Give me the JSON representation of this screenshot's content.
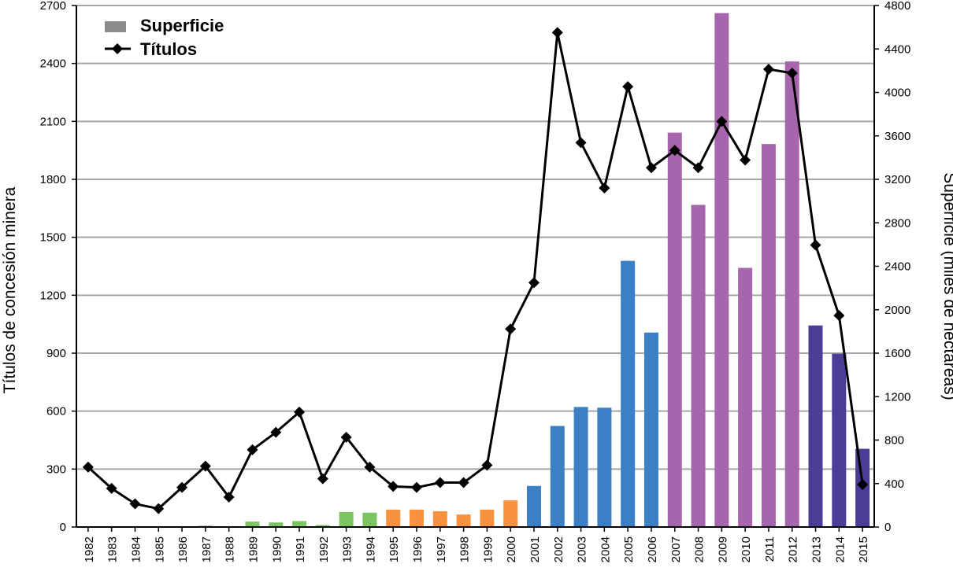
{
  "chart_data": {
    "type": "bar+line",
    "title": "",
    "categories": [
      "1982",
      "1983",
      "1984",
      "1985",
      "1986",
      "1987",
      "1988",
      "1989",
      "1990",
      "1991",
      "1992",
      "1993",
      "1994",
      "1995",
      "1996",
      "1997",
      "1998",
      "1999",
      "2000",
      "2001",
      "2002",
      "2003",
      "2004",
      "2005",
      "2006",
      "2007",
      "2008",
      "2009",
      "2010",
      "2011",
      "2012",
      "2013",
      "2014",
      "2015"
    ],
    "series": [
      {
        "name": "Superficie",
        "kind": "bar",
        "axis": "right",
        "values": [
          2,
          2,
          2,
          2,
          2,
          12,
          2,
          50,
          42,
          55,
          18,
          138,
          132,
          160,
          160,
          145,
          115,
          160,
          245,
          378,
          930,
          1105,
          1098,
          2450,
          1790,
          3630,
          2965,
          4730,
          2385,
          3525,
          4285,
          1855,
          1595,
          720
        ],
        "colors": [
          "#9a9a9a",
          "#9a9a9a",
          "#9a9a9a",
          "#9a9a9a",
          "#9a9a9a",
          "#9a9a9a",
          "#9a9a9a",
          "#7dc462",
          "#7dc462",
          "#7dc462",
          "#7dc462",
          "#7dc462",
          "#7dc462",
          "#f8923f",
          "#f8923f",
          "#f8923f",
          "#f8923f",
          "#f8923f",
          "#f8923f",
          "#3b80c4",
          "#3b80c4",
          "#3b80c4",
          "#3b80c4",
          "#3b80c4",
          "#3b80c4",
          "#a765ad",
          "#a765ad",
          "#a765ad",
          "#a765ad",
          "#a765ad",
          "#a765ad",
          "#4b3c97",
          "#4b3c97",
          "#4b3c97"
        ]
      },
      {
        "name": "Títulos",
        "kind": "line",
        "axis": "left",
        "color": "#000000",
        "values": [
          310,
          200,
          120,
          95,
          205,
          315,
          155,
          400,
          490,
          595,
          250,
          465,
          310,
          210,
          205,
          230,
          230,
          320,
          1025,
          1265,
          2560,
          1990,
          1755,
          2280,
          1860,
          1950,
          1860,
          2100,
          1900,
          2370,
          2350,
          1460,
          1095,
          220
        ]
      }
    ],
    "ylabel": "Títulos de concesión minera",
    "ylabel2": "Superficie (miles de hectáreas)",
    "xlabel": "",
    "ylim": [
      0,
      2700
    ],
    "ylim2": [
      0,
      4800
    ],
    "yticks": [
      "0",
      "300",
      "600",
      "900",
      "1200",
      "1500",
      "1800",
      "2100",
      "2400",
      "2700"
    ],
    "y2ticks": [
      "0",
      "400",
      "800",
      "1200",
      "1600",
      "2000",
      "2400",
      "2800",
      "3200",
      "3600",
      "4000",
      "4400",
      "4800"
    ],
    "legend": {
      "position": "top-left",
      "items": [
        {
          "label": "Superficie",
          "color": "#8c8c8c"
        },
        {
          "label": "Títulos",
          "color": "#000000"
        }
      ]
    },
    "grid": true
  }
}
